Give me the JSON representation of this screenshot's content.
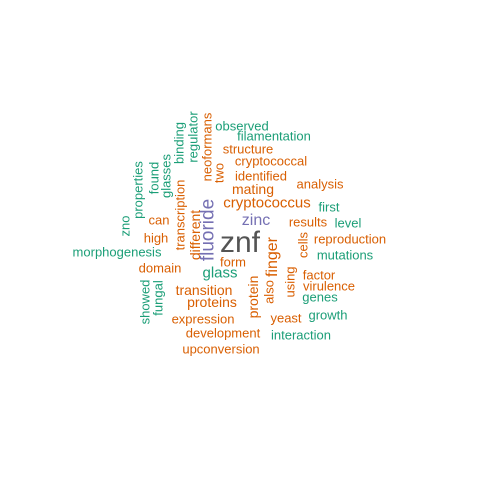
{
  "palette": {
    "large": "#545454",
    "purple": "#7570b3",
    "orange": "#d95f02",
    "green": "#1b9e77"
  },
  "words": [
    {
      "id": "znf",
      "text": "znf",
      "color": "large",
      "vertical": false
    },
    {
      "id": "fluoride",
      "text": "fluoride",
      "color": "purple",
      "vertical": true
    },
    {
      "id": "zinc",
      "text": "zinc",
      "color": "purple",
      "vertical": false
    },
    {
      "id": "finger",
      "text": "finger",
      "color": "orange",
      "vertical": true
    },
    {
      "id": "glass",
      "text": "glass",
      "color": "green",
      "vertical": false
    },
    {
      "id": "cryptococcus",
      "text": "cryptococcus",
      "color": "orange",
      "vertical": false
    },
    {
      "id": "mating",
      "text": "mating",
      "color": "orange",
      "vertical": false
    },
    {
      "id": "transition",
      "text": "transition",
      "color": "orange",
      "vertical": false
    },
    {
      "id": "proteins",
      "text": "proteins",
      "color": "orange",
      "vertical": false
    },
    {
      "id": "protein",
      "text": "protein",
      "color": "orange",
      "vertical": true
    },
    {
      "id": "different",
      "text": "different",
      "color": "orange",
      "vertical": true
    },
    {
      "id": "form",
      "text": "form",
      "color": "orange",
      "vertical": false
    },
    {
      "id": "also",
      "text": "also",
      "color": "orange",
      "vertical": true
    },
    {
      "id": "using",
      "text": "using",
      "color": "orange",
      "vertical": true
    },
    {
      "id": "results",
      "text": "results",
      "color": "orange",
      "vertical": false
    },
    {
      "id": "reproduction",
      "text": "reproduction",
      "color": "orange",
      "vertical": false
    },
    {
      "id": "analysis",
      "text": "analysis",
      "color": "orange",
      "vertical": false
    },
    {
      "id": "identified",
      "text": "identified",
      "color": "orange",
      "vertical": false
    },
    {
      "id": "two",
      "text": "two",
      "color": "orange",
      "vertical": true
    },
    {
      "id": "cryptococcal",
      "text": "cryptococcal",
      "color": "orange",
      "vertical": false
    },
    {
      "id": "structure",
      "text": "structure",
      "color": "orange",
      "vertical": false
    },
    {
      "id": "neoformans",
      "text": "neoformans",
      "color": "orange",
      "vertical": true
    },
    {
      "id": "transcription",
      "text": "transcription",
      "color": "orange",
      "vertical": true
    },
    {
      "id": "can",
      "text": "can",
      "color": "orange",
      "vertical": false
    },
    {
      "id": "high",
      "text": "high",
      "color": "orange",
      "vertical": false
    },
    {
      "id": "domain",
      "text": "domain",
      "color": "orange",
      "vertical": false
    },
    {
      "id": "expression",
      "text": "expression",
      "color": "orange",
      "vertical": false
    },
    {
      "id": "yeast",
      "text": "yeast",
      "color": "orange",
      "vertical": false
    },
    {
      "id": "development",
      "text": "development",
      "color": "orange",
      "vertical": false
    },
    {
      "id": "upconversion",
      "text": "upconversion",
      "color": "orange",
      "vertical": false
    },
    {
      "id": "factor",
      "text": "factor",
      "color": "orange",
      "vertical": false
    },
    {
      "id": "virulence",
      "text": "virulence",
      "color": "orange",
      "vertical": false
    },
    {
      "id": "cells",
      "text": "cells",
      "color": "orange",
      "vertical": true
    },
    {
      "id": "fungal",
      "text": "fungal",
      "color": "green",
      "vertical": true
    },
    {
      "id": "showed",
      "text": "showed",
      "color": "green",
      "vertical": true
    },
    {
      "id": "morphogenesis",
      "text": "morphogenesis",
      "color": "green",
      "vertical": false
    },
    {
      "id": "zno",
      "text": "zno",
      "color": "green",
      "vertical": true
    },
    {
      "id": "properties",
      "text": "properties",
      "color": "green",
      "vertical": true
    },
    {
      "id": "found",
      "text": "found",
      "color": "green",
      "vertical": true
    },
    {
      "id": "glasses",
      "text": "glasses",
      "color": "green",
      "vertical": true
    },
    {
      "id": "binding",
      "text": "binding",
      "color": "green",
      "vertical": true
    },
    {
      "id": "regulator",
      "text": "regulator",
      "color": "green",
      "vertical": true
    },
    {
      "id": "observed",
      "text": "observed",
      "color": "green",
      "vertical": false
    },
    {
      "id": "filamentation",
      "text": "filamentation",
      "color": "green",
      "vertical": false
    },
    {
      "id": "first",
      "text": "first",
      "color": "green",
      "vertical": false
    },
    {
      "id": "level",
      "text": "level",
      "color": "green",
      "vertical": false
    },
    {
      "id": "mutations",
      "text": "mutations",
      "color": "green",
      "vertical": false
    },
    {
      "id": "genes",
      "text": "genes",
      "color": "green",
      "vertical": false
    },
    {
      "id": "growth",
      "text": "growth",
      "color": "green",
      "vertical": false
    },
    {
      "id": "interaction",
      "text": "interaction",
      "color": "green",
      "vertical": false
    }
  ]
}
